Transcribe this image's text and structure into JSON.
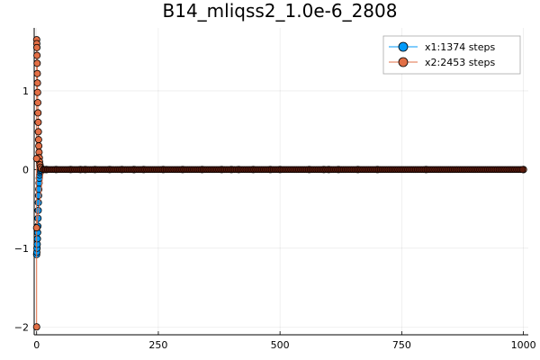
{
  "chart_data": {
    "type": "scatter",
    "title": "B14_mliqss2_1.0e-6_2808",
    "xlabel": "",
    "ylabel": "",
    "xlim": [
      -5,
      1010
    ],
    "ylim": [
      -2.1,
      1.8
    ],
    "xticks": [
      0,
      250,
      500,
      750,
      1000
    ],
    "xtick_labels": [
      "0",
      "250",
      "500",
      "750",
      "1000"
    ],
    "yticks": [
      -2,
      -1,
      0,
      1
    ],
    "ytick_labels": [
      "−2",
      "−1",
      "0",
      "1"
    ],
    "grid": true,
    "legend_position": "top-right",
    "series": [
      {
        "name": "x1:1374 steps",
        "color": "#009AFA",
        "points": [
          [
            0,
            -1.08
          ],
          [
            0.4,
            -1.05
          ],
          [
            0.8,
            -1.0
          ],
          [
            1.2,
            -0.95
          ],
          [
            1.6,
            -0.88
          ],
          [
            2.0,
            -0.8
          ],
          [
            2.4,
            -0.72
          ],
          [
            2.8,
            -0.62
          ],
          [
            3.2,
            -0.52
          ],
          [
            3.6,
            -0.42
          ],
          [
            4.0,
            -0.33
          ],
          [
            4.5,
            -0.25
          ],
          [
            5.0,
            -0.17
          ],
          [
            5.5,
            -0.11
          ],
          [
            6.0,
            -0.07
          ],
          [
            7,
            -0.04
          ],
          [
            8,
            -0.02
          ],
          [
            10,
            -0.01
          ],
          [
            14,
            0.0
          ],
          [
            20,
            0.0
          ],
          [
            40,
            0.0
          ],
          [
            100,
            0.0
          ],
          [
            200,
            0.0
          ],
          [
            400,
            0.0
          ],
          [
            600,
            0.0
          ],
          [
            800,
            0.0
          ],
          [
            1000,
            0.0
          ]
        ]
      },
      {
        "name": "x2:2453 steps",
        "color": "#E26F46",
        "points": [
          [
            0,
            -2.0
          ],
          [
            0.1,
            1.65
          ],
          [
            0.3,
            1.6
          ],
          [
            0.5,
            1.55
          ],
          [
            0.8,
            1.45
          ],
          [
            1.1,
            1.35
          ],
          [
            1.4,
            1.22
          ],
          [
            1.7,
            1.1
          ],
          [
            2.0,
            0.98
          ],
          [
            2.4,
            0.85
          ],
          [
            2.8,
            0.72
          ],
          [
            3.2,
            0.6
          ],
          [
            3.6,
            0.48
          ],
          [
            4.0,
            0.38
          ],
          [
            4.5,
            0.3
          ],
          [
            5.0,
            0.22
          ],
          [
            5.5,
            0.15
          ],
          [
            6.0,
            0.1
          ],
          [
            7,
            0.06
          ],
          [
            8,
            0.03
          ],
          [
            10,
            0.01
          ],
          [
            0,
            0.14
          ],
          [
            0,
            -0.74
          ],
          [
            14,
            0.0
          ],
          [
            20,
            0.0
          ],
          [
            70,
            0.0
          ],
          [
            90,
            0.0
          ],
          [
            120,
            0.0
          ],
          [
            150,
            0.0
          ],
          [
            175,
            0.0
          ],
          [
            200,
            0.0
          ],
          [
            220,
            0.0
          ],
          [
            260,
            0.0
          ],
          [
            300,
            0.0
          ],
          [
            340,
            0.0
          ],
          [
            380,
            0.0
          ],
          [
            415,
            0.0
          ],
          [
            445,
            0.0
          ],
          [
            480,
            0.0
          ],
          [
            500,
            0.0
          ],
          [
            560,
            0.0
          ],
          [
            590,
            0.0
          ],
          [
            620,
            0.0
          ],
          [
            660,
            0.0
          ],
          [
            700,
            0.0
          ],
          [
            1000,
            0.0
          ]
        ]
      }
    ]
  }
}
